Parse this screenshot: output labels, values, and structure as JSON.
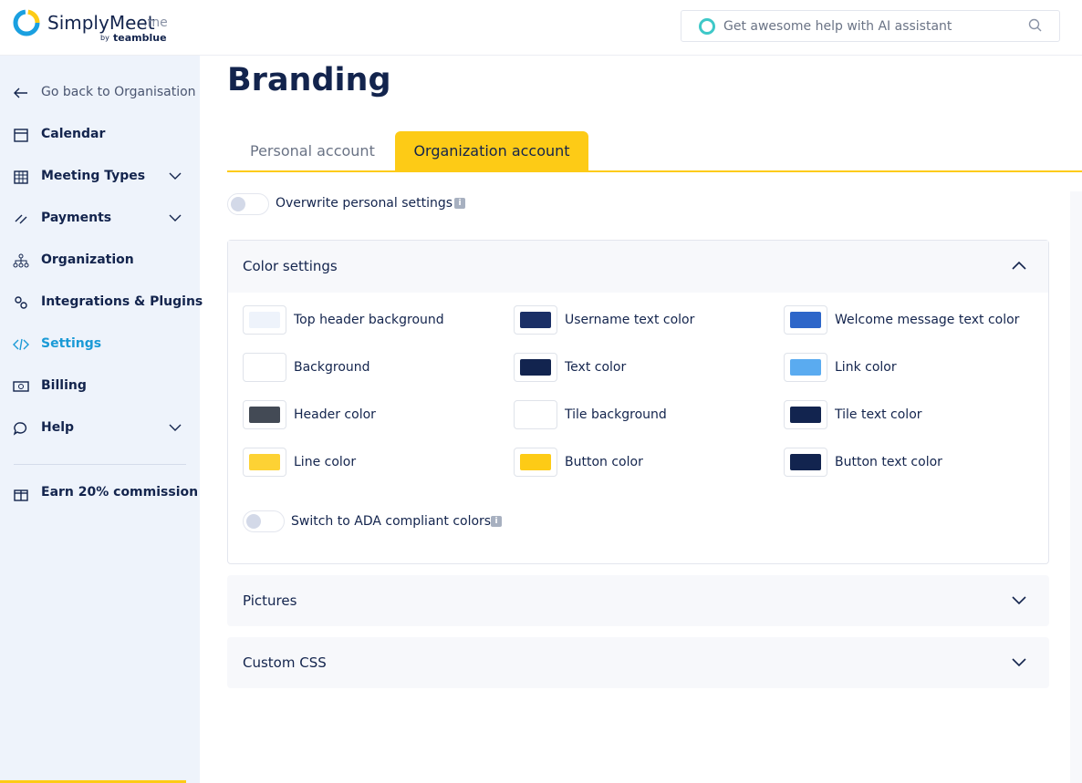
{
  "header": {
    "logo": "SimplyMeet",
    "logo_suffix": ".me",
    "logo_by": "by",
    "logo_brand": "teamblue",
    "search_placeholder": "Get awesome help with AI assistant"
  },
  "sidebar": {
    "back": "Go back to Organisation",
    "items": [
      "Calendar",
      "Meeting Types",
      "Payments",
      "Organization",
      "Integrations & Plugins",
      "Settings",
      "Billing",
      "Help"
    ],
    "earn": "Earn 20% commission"
  },
  "page": {
    "title": "Branding",
    "tabs": [
      "Personal account",
      "Organization account"
    ],
    "overwrite": "Overwrite personal settings",
    "sections": [
      {
        "title": "Color settings",
        "colors": [
          "Top header background",
          "Username text color",
          "Welcome message text color",
          "Background",
          "Text color",
          "Link color",
          "Header color",
          "Tile background",
          "Tile text color",
          "Line color",
          "Button color",
          "Button text color"
        ],
        "ada": "Switch to ADA compliant colors"
      },
      {
        "title": "Pictures"
      },
      {
        "title": "Custom CSS"
      }
    ]
  }
}
